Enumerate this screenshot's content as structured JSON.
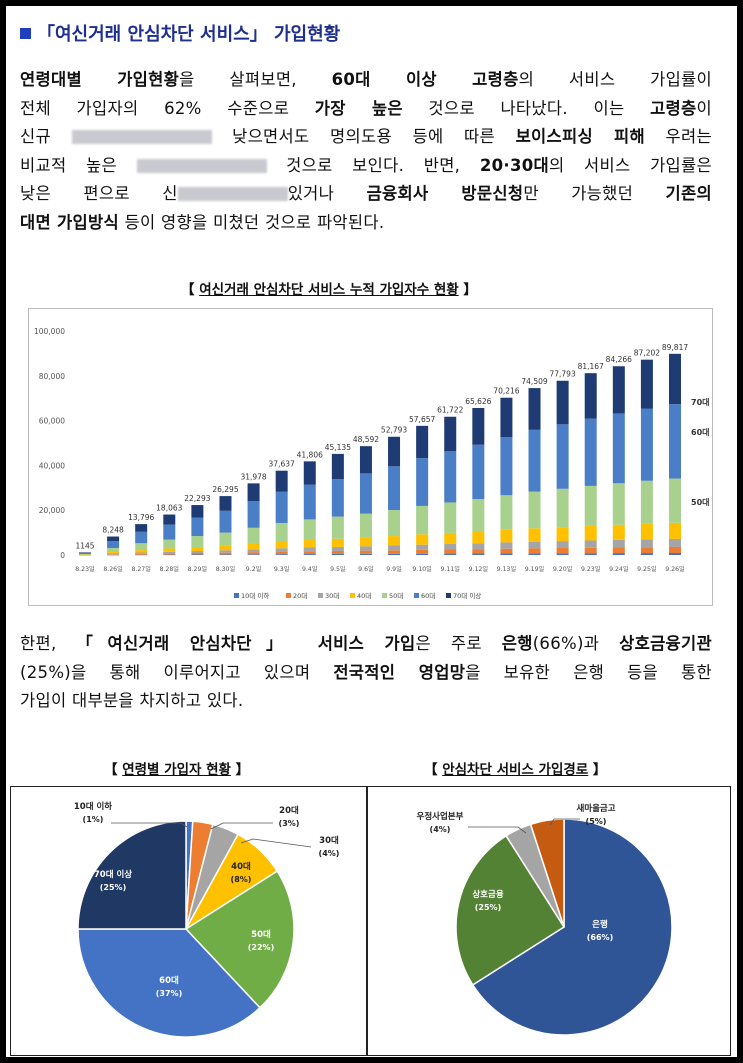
{
  "heading": "「여신거래 안심차단 서비스」 가입현황",
  "para1": {
    "l1": [
      {
        "t": "연령대별 가입현황",
        "b": true
      },
      {
        "t": "을 살펴보면, "
      },
      {
        "t": "60대 이상 고령층",
        "b": true
      },
      {
        "t": "의 서비스 가입률이"
      }
    ],
    "l2": [
      {
        "t": "전체 가입자의 62% 수준으로 "
      },
      {
        "t": "가장 높은",
        "b": true
      },
      {
        "t": " 것으로 나타났다. 이는 "
      },
      {
        "t": "고령층",
        "b": true
      },
      {
        "t": "이"
      }
    ],
    "l3a": "신규",
    "l3b": "낮으면서도 명의도용 등에 따른 ",
    "l3c": "보이스피싱 피해",
    "l3d": " 우려는",
    "l4a": "비교적 높은",
    "l4b": "것으로 보인다. 반면, ",
    "l4c": "20·30대",
    "l4d": "의 서비스 가입률은",
    "l5": [
      {
        "t": "낮은 편으로 신"
      },
      {
        "blur": 110
      },
      {
        "t": "있거나 "
      },
      {
        "t": "금융회사 방문신청",
        "b": true
      },
      {
        "t": "만 가능했던 "
      },
      {
        "t": "기존의",
        "b": true
      }
    ],
    "l6": [
      {
        "t": "대면 가입방식",
        "b": true
      },
      {
        "t": " 등이 영향을 미쳤던 것으로 파악된다."
      }
    ]
  },
  "bar_title": "여신거래 안심차단 서비스 누적 가입자수 현황",
  "para2": {
    "l1": [
      {
        "t": "한편, "
      },
      {
        "t": "「여신거래 안심차단」",
        "b": true
      },
      {
        "t": " 서비스 가입",
        "b": true
      },
      {
        "t": "은 주로 "
      },
      {
        "t": "은행",
        "b": true
      },
      {
        "t": "(66%)과 "
      },
      {
        "t": "상호금융기관",
        "b": true
      }
    ],
    "l2": [
      {
        "t": "(25%)을 통해 이루어지고 있으며 "
      },
      {
        "t": "전국적인 영업망",
        "b": true
      },
      {
        "t": "을 보유한 은행 등을 통한"
      }
    ],
    "l3": [
      {
        "t": "가입이 대부분을 차지하고 있다."
      }
    ]
  },
  "pie1_title": "연령별 가입자 현황",
  "pie2_title": "안심차단 서비스 가입경로",
  "colors": {
    "s10": "#4472c4",
    "s20": "#ed7d31",
    "s30": "#a5a5a5",
    "s40": "#ffc000",
    "s50": "#a9d18e",
    "s60": "#4a7fc7",
    "s70": "#1f3b73"
  },
  "chart_data": [
    {
      "type": "bar",
      "stacked": true,
      "title": "여신거래 안심차단 서비스 누적 가입자수 현황",
      "categories": [
        "8.23일",
        "8.26일",
        "8.27일",
        "8.28일",
        "8.29일",
        "8.30일",
        "9.2일",
        "9.3일",
        "9.4일",
        "9.5일",
        "9.6일",
        "9.9일",
        "9.10일",
        "9.11일",
        "9.12일",
        "9.13일",
        "9.19일",
        "9.20일",
        "9.23일",
        "9.24일",
        "9.25일",
        "9.26일"
      ],
      "totals": [
        1145,
        8248,
        13796,
        18063,
        22293,
        26295,
        31978,
        37637,
        41806,
        45135,
        48592,
        52793,
        57657,
        61722,
        65626,
        70216,
        74509,
        77793,
        81167,
        84266,
        87202,
        89817
      ],
      "total_labels": [
        "1145",
        "8,248",
        "13,796",
        "18,063",
        "22,293",
        "26,295",
        "31,978",
        "37,637",
        "41,806",
        "45,135",
        "48,592",
        "52,793",
        "57,657",
        "61,722",
        "65,626",
        "70,216",
        "74,509",
        "77,793",
        "81,167",
        "84,266",
        "87,202",
        "89,817"
      ],
      "series": [
        {
          "name": "10대 이하",
          "share": 0.01
        },
        {
          "name": "20대",
          "share": 0.03
        },
        {
          "name": "30대",
          "share": 0.04
        },
        {
          "name": "40대",
          "share": 0.08
        },
        {
          "name": "50대",
          "share": 0.22
        },
        {
          "name": "60대",
          "share": 0.37
        },
        {
          "name": "70대 이상",
          "share": 0.25
        }
      ],
      "yticks": [
        "100,000",
        "80,000",
        "60,000",
        "40,000",
        "20,000",
        "0"
      ],
      "ylim": [
        0,
        100000
      ],
      "right_labels": [
        "70대",
        "60대",
        "50대"
      ]
    },
    {
      "type": "pie",
      "title": "연령별 가입자 현황",
      "slices": [
        {
          "label": "10대 이하",
          "pct": "(1%)",
          "value": 1
        },
        {
          "label": "20대",
          "pct": "(3%)",
          "value": 3
        },
        {
          "label": "30대",
          "pct": "(4%)",
          "value": 4
        },
        {
          "label": "40대",
          "pct": "(8%)",
          "value": 8
        },
        {
          "label": "50대",
          "pct": "(22%)",
          "value": 22
        },
        {
          "label": "60대",
          "pct": "(37%)",
          "value": 37
        },
        {
          "label": "70대 이상",
          "pct": "(25%)",
          "value": 25
        }
      ]
    },
    {
      "type": "pie",
      "title": "안심차단 서비스 가입경로",
      "slices": [
        {
          "label": "은행",
          "pct": "(66%)",
          "value": 66
        },
        {
          "label": "상호금융",
          "pct": "(25%)",
          "value": 25
        },
        {
          "label": "우정사업본부",
          "pct": "(4%)",
          "value": 4
        },
        {
          "label": "새마을금고",
          "pct": "(5%)",
          "value": 5
        }
      ]
    }
  ]
}
